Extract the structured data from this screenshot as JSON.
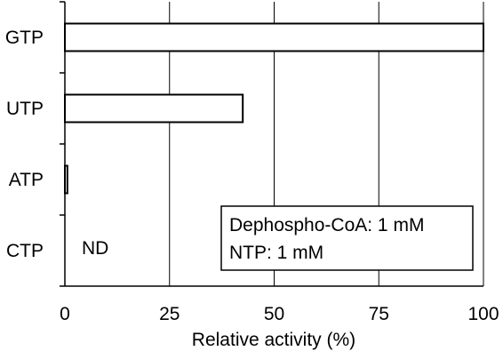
{
  "chart_data": {
    "type": "bar",
    "orientation": "horizontal",
    "categories": [
      "GTP",
      "UTP",
      "ATP",
      "CTP"
    ],
    "values": [
      100,
      42.5,
      0.6,
      null
    ],
    "value_labels": {
      "CTP": "ND"
    },
    "xlabel": "Relative activity (%)",
    "ylabel": "",
    "title": "",
    "xlim": [
      0,
      100
    ],
    "xticks": [
      0,
      25,
      50,
      75,
      100
    ],
    "grid": "vertical",
    "bar_fill": "#ffffff",
    "bar_stroke": "#000000",
    "annotation_box": {
      "lines": [
        "Dephospho-CoA: 1 mM",
        "NTP: 1 mM"
      ],
      "placement": "bottom-right"
    }
  }
}
